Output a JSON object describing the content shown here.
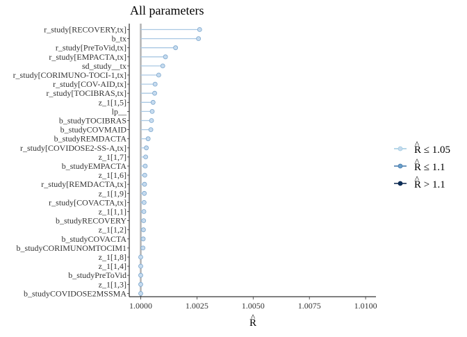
{
  "chart_data": {
    "type": "scatter",
    "title": "All parameters",
    "xlabel": "R",
    "xlabel_hat": "^",
    "xlim": [
      0.9985,
      1.0105
    ],
    "x_ticks": [
      1.0,
      1.0025,
      1.005,
      1.0075,
      1.01
    ],
    "x_tick_labels": [
      "1.0000",
      "1.0025",
      "1.0050",
      "1.0075",
      "1.0100"
    ],
    "reference_line": 1.0,
    "point_color": "#c6dbef",
    "point_stroke": "#7ba6cc",
    "categories": [
      "r_study[RECOVERY,tx]",
      "b_tx",
      "r_study[PreToVid,tx]",
      "r_study[EMPACTA,tx]",
      "sd_study__tx",
      "r_study[CORIMUNO-TOCI-1,tx]",
      "r_study[COV-AID,tx]",
      "r_study[TOCIBRAS,tx]",
      "z_1[1,5]",
      "lp__",
      "b_studyTOCIBRAS",
      "b_studyCOVMAID",
      "b_studyREMDACTA",
      "r_study[COVIDOSE2-SS-A,tx]",
      "z_1[1,7]",
      "b_studyEMPACTA",
      "z_1[1,6]",
      "r_study[REMDACTA,tx]",
      "z_1[1,9]",
      "r_study[COVACTA,tx]",
      "z_1[1,1]",
      "b_studyRECOVERY",
      "z_1[1,2]",
      "b_studyCOVACTA",
      "b_studyCORIMUNOMTOCIM1",
      "z_1[1,8]",
      "z_1[1,4]",
      "b_studyPreToVid",
      "z_1[1,3]",
      "b_studyCOVIDOSE2MSSMA"
    ],
    "values": [
      1.00262,
      1.00257,
      1.00155,
      1.0011,
      1.00098,
      1.0008,
      1.00064,
      1.00062,
      1.00055,
      1.00051,
      1.00048,
      1.00045,
      1.00033,
      1.00025,
      1.00022,
      1.0002,
      1.00018,
      1.00017,
      1.00016,
      1.00015,
      1.00014,
      1.00013,
      1.00012,
      1.00011,
      1.0001,
      1.0,
      1.0,
      1.0,
      1.0,
      1.0
    ],
    "legend": {
      "position": "right",
      "entries": [
        {
          "label": "R ≤ 1.05",
          "color": "#c6dbef",
          "line": "#9ecae1"
        },
        {
          "label": "R ≤ 1.1",
          "color": "#6a9fca",
          "line": "#3f75a8"
        },
        {
          "label": "R > 1.1",
          "color": "#0b2f5a",
          "line": "#08234a"
        }
      ]
    },
    "grid": false
  }
}
